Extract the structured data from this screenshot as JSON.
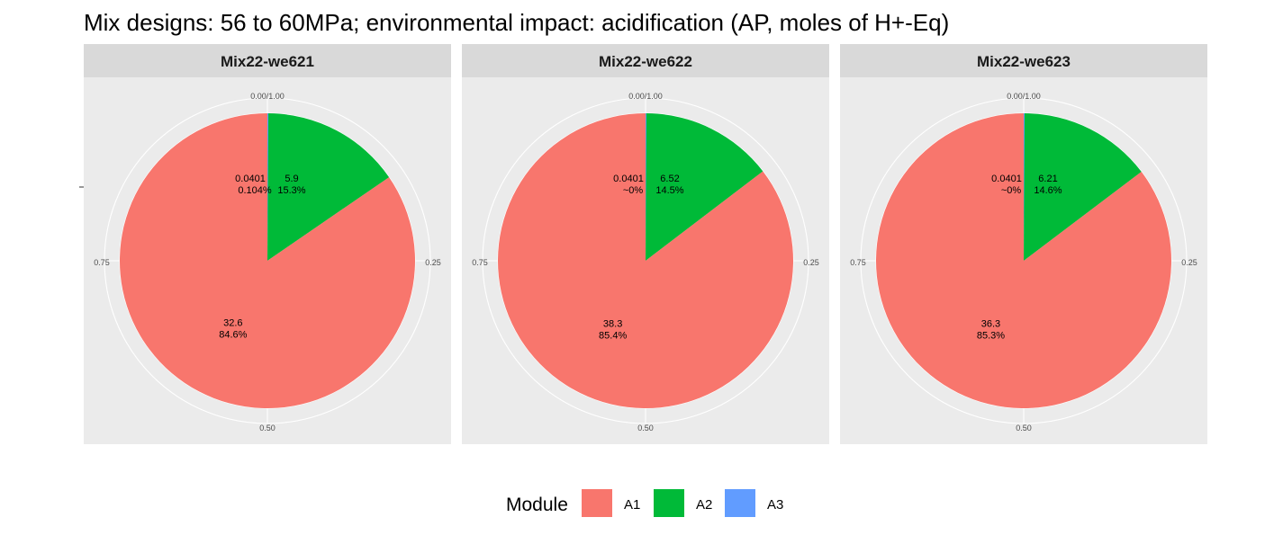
{
  "title": "Mix designs: 56 to 60MPa; environmental impact: acidification (AP, moles of H+-Eq)",
  "chart_data": {
    "type": "pie",
    "title": "Mix designs: 56 to 60MPa; environmental impact: acidification (AP, moles of H+-Eq)",
    "angle_ticks": [
      "0.00/1.00",
      "0.25",
      "0.50",
      "0.75"
    ],
    "legend": {
      "title": "Module",
      "position": "bottom",
      "entries": [
        {
          "key": "A1",
          "label": "A1",
          "color": "#F8766D"
        },
        {
          "key": "A2",
          "label": "A2",
          "color": "#00BA38"
        },
        {
          "key": "A3",
          "label": "A3",
          "color": "#619CFF"
        }
      ]
    },
    "panels": [
      {
        "name": "Mix22-we621",
        "slices": [
          {
            "module": "A3",
            "value": 0.0401,
            "value_label": "0.0401",
            "pct_label": "0.104%"
          },
          {
            "module": "A2",
            "value": 5.9,
            "value_label": "5.9",
            "pct_label": "15.3%"
          },
          {
            "module": "A1",
            "value": 32.6,
            "value_label": "32.6",
            "pct_label": "84.6%"
          }
        ]
      },
      {
        "name": "Mix22-we622",
        "slices": [
          {
            "module": "A3",
            "value": 0.0401,
            "value_label": "0.0401",
            "pct_label": "~0%"
          },
          {
            "module": "A2",
            "value": 6.52,
            "value_label": "6.52",
            "pct_label": "14.5%"
          },
          {
            "module": "A1",
            "value": 38.3,
            "value_label": "38.3",
            "pct_label": "85.4%"
          }
        ]
      },
      {
        "name": "Mix22-we623",
        "slices": [
          {
            "module": "A3",
            "value": 0.0401,
            "value_label": "0.0401",
            "pct_label": "~0%"
          },
          {
            "module": "A2",
            "value": 6.21,
            "value_label": "6.21",
            "pct_label": "14.6%"
          },
          {
            "module": "A1",
            "value": 36.3,
            "value_label": "36.3",
            "pct_label": "85.3%"
          }
        ]
      }
    ]
  }
}
